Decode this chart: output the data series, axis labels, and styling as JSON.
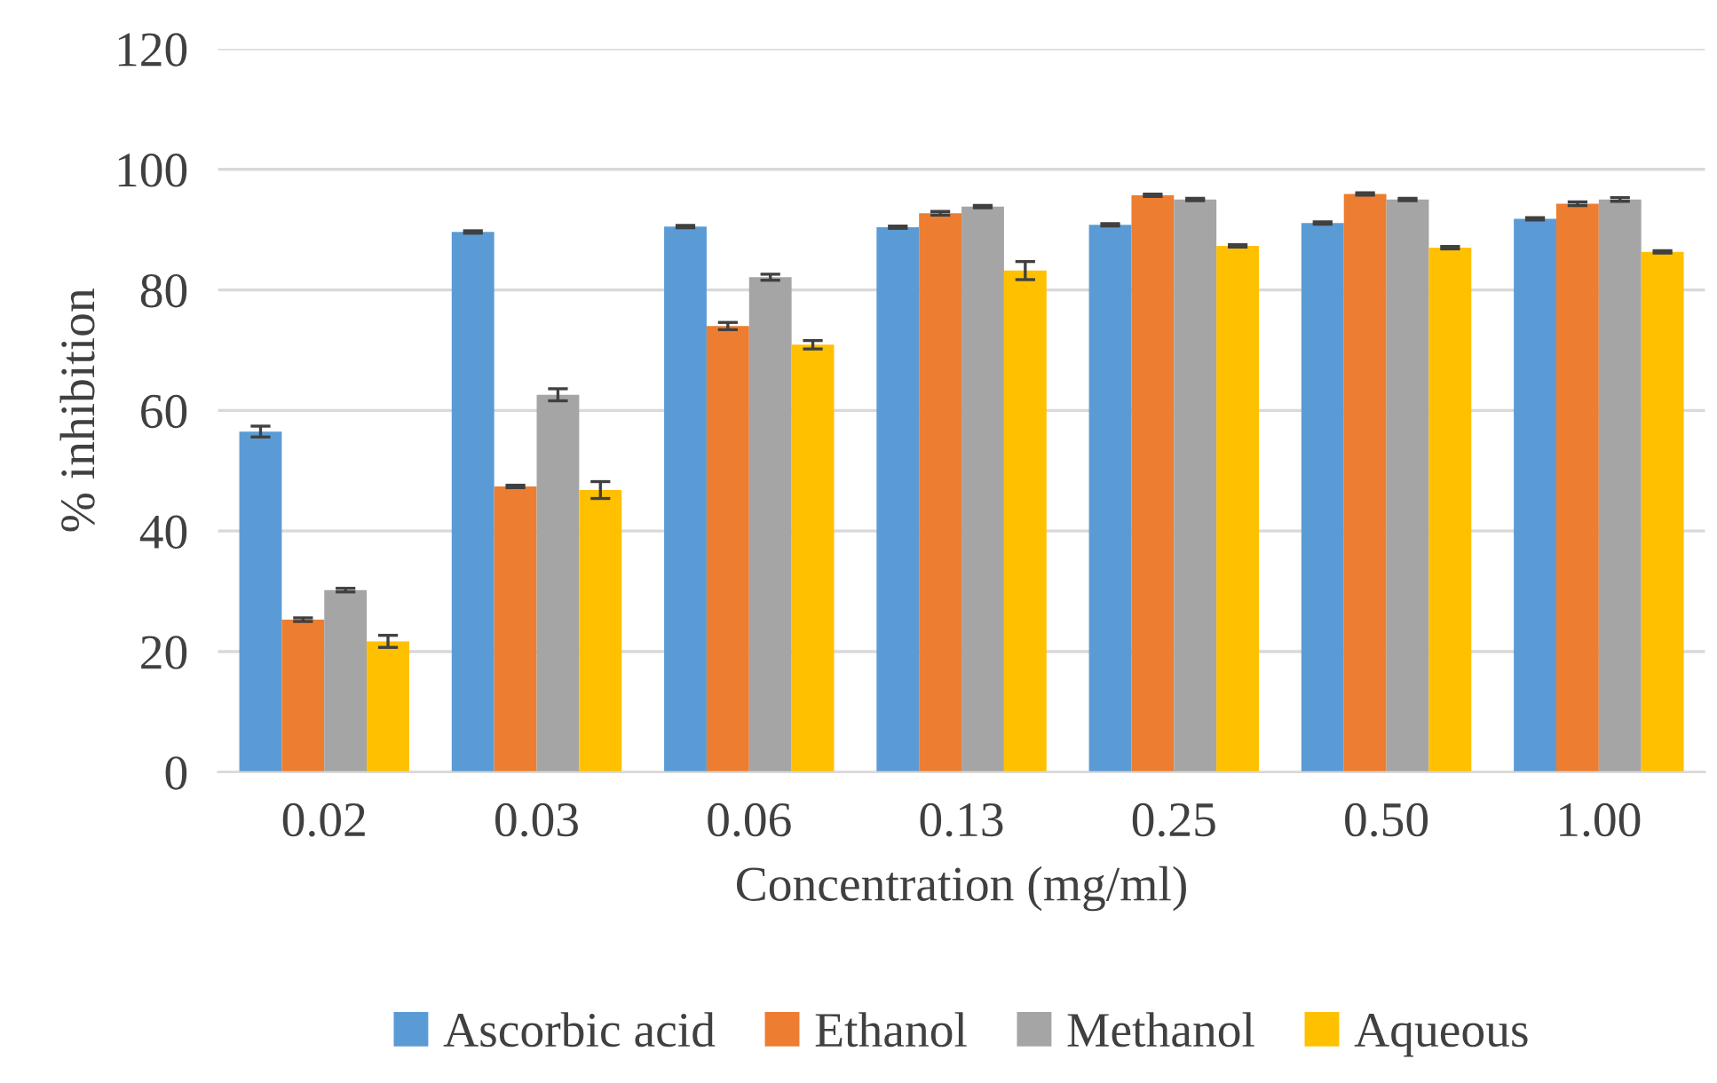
{
  "chart_data": {
    "type": "bar",
    "xlabel": "Concentration (mg/ml)",
    "ylabel": "% inhibition",
    "categories": [
      "0.02",
      "0.03",
      "0.06",
      "0.13",
      "0.25",
      "0.50",
      "1.00"
    ],
    "series": [
      {
        "name": "Ascorbic acid",
        "color": "#5b9bd5",
        "values": [
          56.5,
          89.6,
          90.5,
          90.4,
          90.8,
          91.1,
          91.8
        ],
        "errors": [
          0.9,
          0.2,
          0.2,
          0.2,
          0.2,
          0.2,
          0.2
        ]
      },
      {
        "name": "Ethanol",
        "color": "#ed7d31",
        "values": [
          25.3,
          47.4,
          74.0,
          92.7,
          95.7,
          95.9,
          94.3
        ],
        "errors": [
          0.3,
          0.2,
          0.6,
          0.3,
          0.2,
          0.2,
          0.3
        ]
      },
      {
        "name": "Methanol",
        "color": "#a5a5a5",
        "values": [
          30.2,
          62.6,
          82.1,
          93.8,
          95.0,
          95.0,
          95.0
        ],
        "errors": [
          0.3,
          1.0,
          0.5,
          0.2,
          0.2,
          0.2,
          0.3
        ]
      },
      {
        "name": "Aqueous",
        "color": "#ffc000",
        "values": [
          21.7,
          46.8,
          70.9,
          83.2,
          87.3,
          87.0,
          86.3
        ],
        "errors": [
          1.0,
          1.4,
          0.7,
          1.5,
          0.2,
          0.2,
          0.2
        ]
      }
    ],
    "ylim": [
      0,
      120
    ],
    "yticks": [
      0,
      20,
      40,
      60,
      80,
      100,
      120
    ],
    "grid": "y",
    "legend": "bottom"
  }
}
